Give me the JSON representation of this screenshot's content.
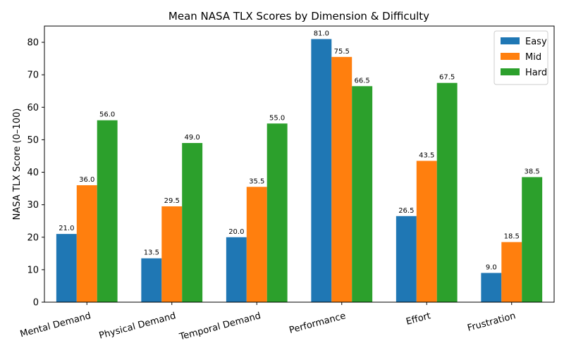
{
  "chart_data": {
    "type": "bar",
    "title": "Mean NASA TLX Scores by Dimension & Difficulty",
    "xlabel": "",
    "ylabel": "NASA TLX Score (0–100)",
    "ylim": [
      0,
      85
    ],
    "yticks": [
      "0",
      "10",
      "20",
      "30",
      "40",
      "50",
      "60",
      "70",
      "80"
    ],
    "categories": [
      "Mental Demand",
      "Physical Demand",
      "Temporal Demand",
      "Performance",
      "Effort",
      "Frustration"
    ],
    "series": [
      {
        "name": "Easy",
        "color": "#1f77b4",
        "values": [
          21.0,
          13.5,
          20.0,
          81.0,
          26.5,
          9.0
        ],
        "labels": [
          "21.0",
          "13.5",
          "20.0",
          "81.0",
          "26.5",
          "9.0"
        ]
      },
      {
        "name": "Mid",
        "color": "#ff7f0e",
        "values": [
          36.0,
          29.5,
          35.5,
          75.5,
          43.5,
          18.5
        ],
        "labels": [
          "36.0",
          "29.5",
          "35.5",
          "75.5",
          "43.5",
          "18.5"
        ]
      },
      {
        "name": "Hard",
        "color": "#2ca02c",
        "values": [
          56.0,
          49.0,
          55.0,
          66.5,
          67.5,
          38.5
        ],
        "labels": [
          "56.0",
          "49.0",
          "55.0",
          "66.5",
          "67.5",
          "38.5"
        ]
      }
    ],
    "legend_position": "top-right",
    "grid": false
  }
}
